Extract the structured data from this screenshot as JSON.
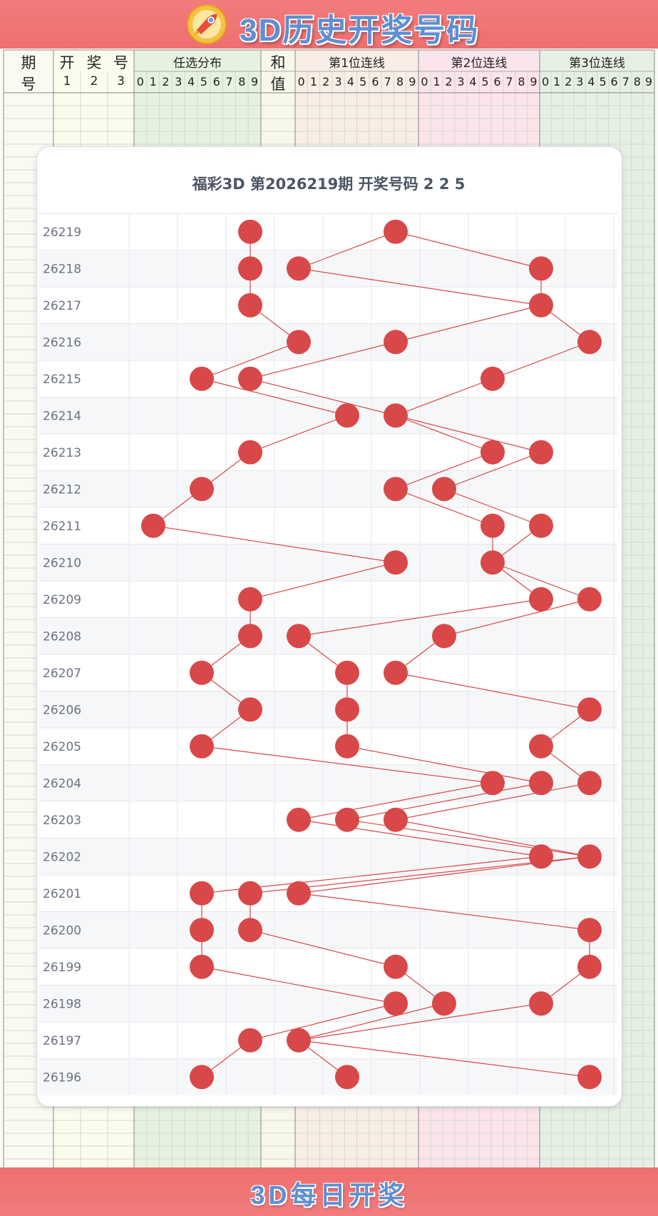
{
  "header": {
    "title": "3D历史开奖号码",
    "footer_title": "3D每日开奖",
    "col_period_1": "期",
    "col_period_2": "号",
    "col_draw_1": "开",
    "col_draw_2": "奖",
    "col_draw_3": "号",
    "col_draw_idx": [
      "1",
      "2",
      "3"
    ],
    "col_dist": "任选分布",
    "col_sum_1": "和",
    "col_sum_2": "值",
    "col_pos1": "第1位连线",
    "col_pos2": "第2位连线",
    "col_pos3": "第3位连线",
    "digits": [
      "0",
      "1",
      "2",
      "3",
      "4",
      "5",
      "6",
      "7",
      "8",
      "9"
    ]
  },
  "colors": {
    "banner": "#f07474",
    "title_text": "#5d8fd4",
    "ball": "#d94848",
    "line": "#d94848",
    "dist_band": "#e3f1dc",
    "pos1_band": "#f8ede4",
    "pos2_band": "#fbe3ea",
    "pos3_band": "#e5efe2"
  },
  "icons": {
    "logo": "rocket-logo-icon"
  },
  "chart_data": {
    "type": "scatter",
    "title": "福彩3D 第2026219期  开奖号码 2 2 5",
    "x_categories": [
      "0",
      "1",
      "2",
      "3",
      "4",
      "5",
      "6",
      "7",
      "8",
      "9"
    ],
    "x_labels_shown": false,
    "rows": [
      {
        "period": "26219",
        "balls": [
          2,
          5
        ]
      },
      {
        "period": "26218",
        "balls": [
          2,
          3,
          8
        ]
      },
      {
        "period": "26217",
        "balls": [
          2,
          8
        ]
      },
      {
        "period": "26216",
        "balls": [
          3,
          5,
          9
        ]
      },
      {
        "period": "26215",
        "balls": [
          1,
          2,
          7
        ]
      },
      {
        "period": "26214",
        "balls": [
          4,
          5
        ]
      },
      {
        "period": "26213",
        "balls": [
          2,
          7,
          8
        ]
      },
      {
        "period": "26212",
        "balls": [
          1,
          5,
          6
        ]
      },
      {
        "period": "26211",
        "balls": [
          0,
          7,
          8
        ]
      },
      {
        "period": "26210",
        "balls": [
          5,
          7
        ]
      },
      {
        "period": "26209",
        "balls": [
          2,
          8,
          9
        ]
      },
      {
        "period": "26208",
        "balls": [
          2,
          3,
          6
        ]
      },
      {
        "period": "26207",
        "balls": [
          1,
          4,
          5
        ]
      },
      {
        "period": "26206",
        "balls": [
          2,
          4,
          9
        ]
      },
      {
        "period": "26205",
        "balls": [
          1,
          4,
          8
        ]
      },
      {
        "period": "26204",
        "balls": [
          7,
          8,
          9
        ]
      },
      {
        "period": "26203",
        "balls": [
          3,
          4,
          5
        ]
      },
      {
        "period": "26202",
        "balls": [
          8,
          9
        ]
      },
      {
        "period": "26201",
        "balls": [
          1,
          2,
          3
        ]
      },
      {
        "period": "26200",
        "balls": [
          1,
          2,
          9
        ]
      },
      {
        "period": "26199",
        "balls": [
          1,
          5,
          9
        ]
      },
      {
        "period": "26198",
        "balls": [
          5,
          6,
          8
        ]
      },
      {
        "period": "26197",
        "balls": [
          2,
          3
        ]
      },
      {
        "period": "26196",
        "balls": [
          1,
          4,
          9
        ]
      }
    ]
  }
}
